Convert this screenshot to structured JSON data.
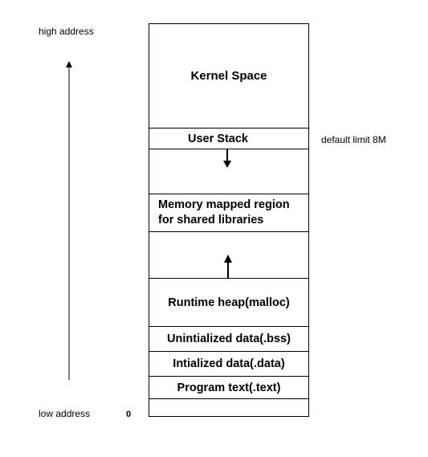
{
  "labels": {
    "high_address": "high address",
    "low_address": "low address",
    "zero": "0",
    "default_limit": "default limit 8M"
  },
  "regions": {
    "kernel": "Kernel Space",
    "user_stack": "User Stack",
    "mmap_line1": "Memory mapped region",
    "mmap_line2": "for shared libraries",
    "heap": "Runtime heap(malloc)",
    "bss": "Unintialized data(.bss)",
    "data": "Intialized data(.data)",
    "text": "Program text(.text)"
  },
  "arrows": {
    "address_direction": "up",
    "stack_growth": "down",
    "heap_growth": "up"
  }
}
